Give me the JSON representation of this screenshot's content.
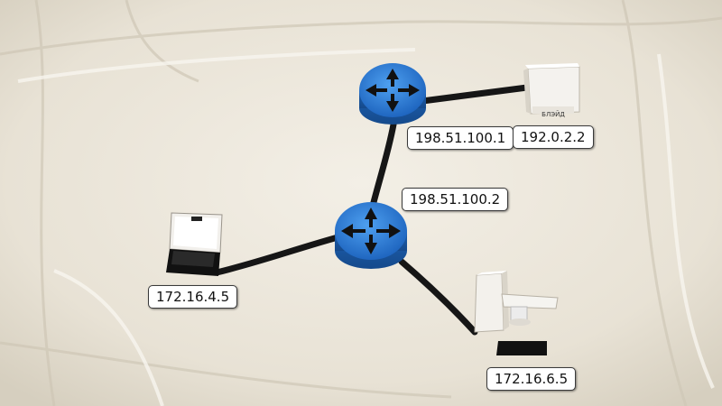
{
  "labels": {
    "router_top": "198.51.100.1",
    "server": "192.0.2.2",
    "router_center": "198.51.100.2",
    "laptop": "172.16.4.5",
    "desktop": "172.16.6.5"
  },
  "server_box_text": "БЛЭЙД",
  "colors": {
    "cloth": "#ece7db",
    "router_blue": "#2f7fd6",
    "cable": "#1a1a1a",
    "label_bg": "#ffffff",
    "label_border": "#3a3a3a"
  }
}
